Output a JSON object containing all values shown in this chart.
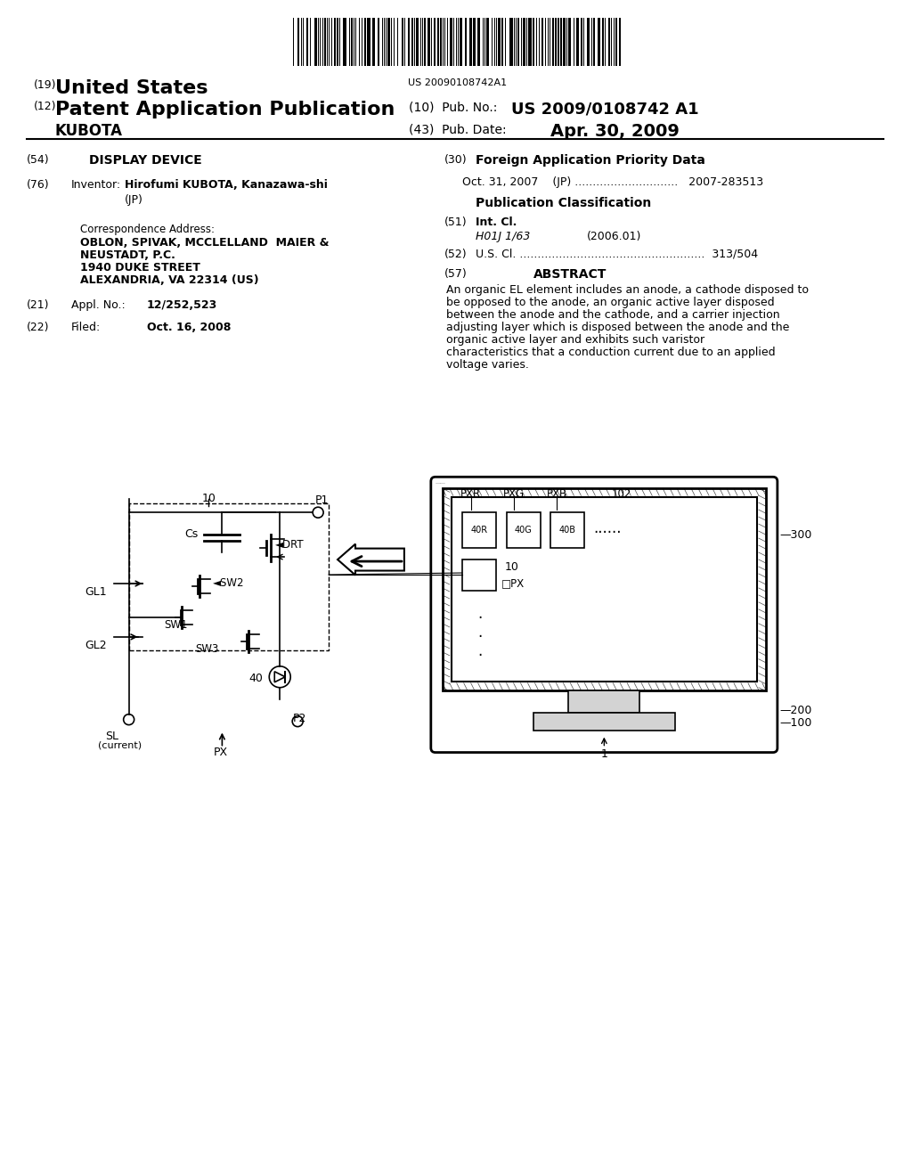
{
  "bg_color": "#ffffff",
  "barcode_text": "US 20090108742A1",
  "patent_number": "19",
  "country": "United States",
  "app_type_num": "12",
  "app_type": "Patent Application Publication",
  "pub_no_label": "(10)  Pub. No.:",
  "pub_no": "US 2009/0108742 A1",
  "assignee": "KUBOTA",
  "pub_date_label": "(43)  Pub. Date:",
  "pub_date": "Apr. 30, 2009",
  "field54_label": "(54)",
  "field54": "DISPLAY DEVICE",
  "field30_label": "(30)",
  "field30_title": "Foreign Application Priority Data",
  "priority_line": "Oct. 31, 2007    (JP) .............................   2007-283513",
  "field76_label": "(76)",
  "field76_title": "Inventor:",
  "field76_name": "Hirofumi KUBOTA, Kanazawa-shi",
  "field76_country": "(JP)",
  "pub_class_title": "Publication Classification",
  "field51_label": "(51)",
  "field51_title": "Int. Cl.",
  "field51_class": "H01J 1/63",
  "field51_year": "(2006.01)",
  "field52_label": "(52)",
  "field52": "U.S. Cl. ....................................................  313/504",
  "field57_label": "(57)",
  "field57_title": "ABSTRACT",
  "abstract": "An organic EL element includes an anode, a cathode disposed to be opposed to the anode, an organic active layer disposed between the anode and the cathode, and a carrier injection adjusting layer which is disposed between the anode and the organic active layer and exhibits such varistor characteristics that a conduction current due to an applied voltage varies.",
  "corr_label": "Correspondence Address:",
  "corr_name": "OBLON, SPIVAK, MCCLELLAND  MAIER &\nNEUSTADT, P.C.\n1940 DUKE STREET\nALEXANDRIA, VA 22314 (US)",
  "field21_label": "(21)",
  "field21_title": "Appl. No.:",
  "field21_no": "12/252,523",
  "field22_label": "(22)",
  "field22_title": "Filed:",
  "field22_date": "Oct. 16, 2008"
}
